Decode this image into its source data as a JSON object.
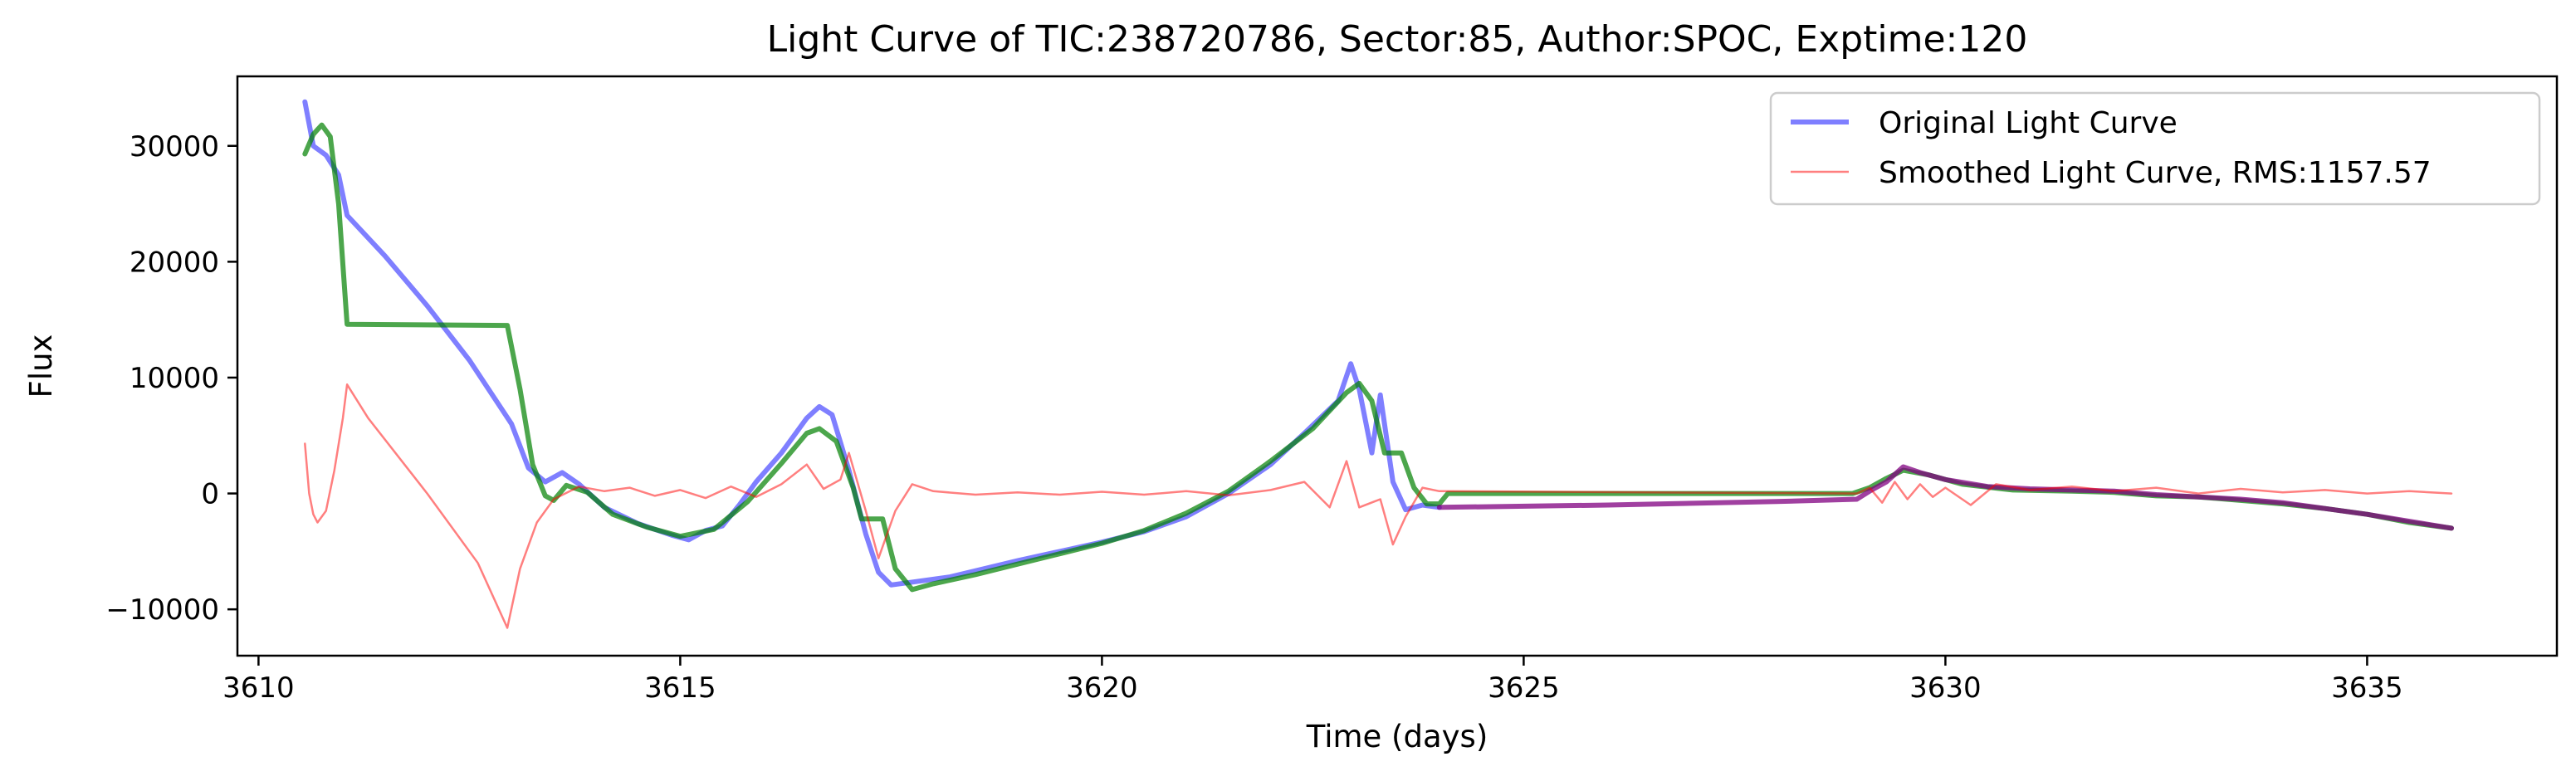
{
  "chart_data": {
    "type": "line",
    "title": "Light Curve of TIC:238720786, Sector:85, Author:SPOC, Exptime:120",
    "xlabel": "Time (days)",
    "ylabel": "Flux",
    "xlim": [
      3609.75,
      3637.25
    ],
    "ylim": [
      -14000,
      36000
    ],
    "xticks": [
      3610,
      3615,
      3620,
      3625,
      3630,
      3635
    ],
    "yticks": [
      -10000,
      0,
      10000,
      20000,
      30000
    ],
    "xtick_labels": [
      "3610",
      "3615",
      "3620",
      "3625",
      "3630",
      "3635"
    ],
    "ytick_labels": [
      "−10000",
      "0",
      "10000",
      "20000",
      "30000"
    ],
    "grid": false,
    "legend_position": "top-right",
    "series": [
      {
        "name": "Original Light Curve",
        "color": "#0000ff",
        "opacity": 0.5,
        "width": "thick",
        "points": [
          [
            3610.55,
            33800
          ],
          [
            3610.65,
            30000
          ],
          [
            3610.8,
            29200
          ],
          [
            3610.95,
            27500
          ],
          [
            3611.05,
            24000
          ],
          [
            3611.5,
            20500
          ],
          [
            3612.0,
            16200
          ],
          [
            3612.5,
            11500
          ],
          [
            3613.0,
            6000
          ],
          [
            3613.2,
            2200
          ],
          [
            3613.4,
            1000
          ],
          [
            3613.6,
            1800
          ],
          [
            3613.8,
            800
          ],
          [
            3614.1,
            -1200
          ],
          [
            3614.5,
            -2600
          ],
          [
            3614.9,
            -3600
          ],
          [
            3615.1,
            -4000
          ],
          [
            3615.3,
            -3200
          ],
          [
            3615.5,
            -2800
          ],
          [
            3615.7,
            -1000
          ],
          [
            3615.9,
            1000
          ],
          [
            3616.2,
            3500
          ],
          [
            3616.5,
            6500
          ],
          [
            3616.65,
            7500
          ],
          [
            3616.8,
            6800
          ],
          [
            3617.0,
            2000
          ],
          [
            3617.2,
            -3500
          ],
          [
            3617.35,
            -6800
          ],
          [
            3617.5,
            -7900
          ],
          [
            3617.8,
            -7600
          ],
          [
            3618.2,
            -7200
          ],
          [
            3618.6,
            -6500
          ],
          [
            3619.0,
            -5800
          ],
          [
            3619.5,
            -5000
          ],
          [
            3620.0,
            -4200
          ],
          [
            3620.5,
            -3300
          ],
          [
            3621.0,
            -2000
          ],
          [
            3621.5,
            0
          ],
          [
            3622.0,
            2500
          ],
          [
            3622.4,
            5200
          ],
          [
            3622.8,
            8000
          ],
          [
            3622.95,
            11200
          ],
          [
            3623.05,
            9000
          ],
          [
            3623.2,
            3500
          ],
          [
            3623.3,
            8500
          ],
          [
            3623.45,
            1000
          ],
          [
            3623.6,
            -1400
          ],
          [
            3623.8,
            -1000
          ],
          [
            3624.0,
            -1200
          ]
        ]
      },
      {
        "name": "Smoothed Light Curve, RMS:1157.57",
        "color": "#ff0000",
        "opacity": 0.5,
        "width": "thin",
        "points": [
          [
            3610.55,
            4300
          ],
          [
            3610.6,
            0
          ],
          [
            3610.65,
            -1800
          ],
          [
            3610.7,
            -2500
          ],
          [
            3610.8,
            -1500
          ],
          [
            3610.9,
            2000
          ],
          [
            3611.0,
            6500
          ],
          [
            3611.05,
            9400
          ],
          [
            3611.3,
            6500
          ],
          [
            3612.0,
            0
          ],
          [
            3612.6,
            -6000
          ],
          [
            3612.95,
            -11600
          ],
          [
            3613.1,
            -6500
          ],
          [
            3613.3,
            -2500
          ],
          [
            3613.5,
            -500
          ],
          [
            3613.8,
            600
          ],
          [
            3614.1,
            200
          ],
          [
            3614.4,
            500
          ],
          [
            3614.7,
            -200
          ],
          [
            3615.0,
            300
          ],
          [
            3615.3,
            -400
          ],
          [
            3615.6,
            600
          ],
          [
            3615.9,
            -300
          ],
          [
            3616.2,
            800
          ],
          [
            3616.5,
            2500
          ],
          [
            3616.7,
            400
          ],
          [
            3616.9,
            1200
          ],
          [
            3617.0,
            3500
          ],
          [
            3617.2,
            -1500
          ],
          [
            3617.35,
            -5600
          ],
          [
            3617.55,
            -1500
          ],
          [
            3617.75,
            800
          ],
          [
            3618.0,
            200
          ],
          [
            3618.5,
            -100
          ],
          [
            3619.0,
            100
          ],
          [
            3619.5,
            -100
          ],
          [
            3620.0,
            150
          ],
          [
            3620.5,
            -100
          ],
          [
            3621.0,
            200
          ],
          [
            3621.5,
            -150
          ],
          [
            3622.0,
            300
          ],
          [
            3622.4,
            1000
          ],
          [
            3622.7,
            -1200
          ],
          [
            3622.9,
            2800
          ],
          [
            3623.05,
            -1200
          ],
          [
            3623.3,
            -500
          ],
          [
            3623.45,
            -4400
          ],
          [
            3623.6,
            -2000
          ],
          [
            3623.8,
            500
          ],
          [
            3624.0,
            200
          ],
          [
            3628.95,
            0
          ],
          [
            3629.1,
            500
          ],
          [
            3629.25,
            -800
          ],
          [
            3629.4,
            1000
          ],
          [
            3629.55,
            -500
          ],
          [
            3629.7,
            800
          ],
          [
            3629.85,
            -300
          ],
          [
            3630.0,
            500
          ],
          [
            3630.3,
            -1000
          ],
          [
            3630.6,
            800
          ],
          [
            3631.0,
            300
          ],
          [
            3631.5,
            600
          ],
          [
            3632.0,
            200
          ],
          [
            3632.5,
            500
          ],
          [
            3633.0,
            0
          ],
          [
            3633.5,
            400
          ],
          [
            3634.0,
            100
          ],
          [
            3634.5,
            300
          ],
          [
            3635.0,
            0
          ],
          [
            3635.5,
            200
          ],
          [
            3636.0,
            0
          ]
        ]
      },
      {
        "name": "",
        "color": "#008000",
        "opacity": 0.7,
        "width": "thick",
        "points": [
          [
            3610.55,
            29300
          ],
          [
            3610.65,
            31000
          ],
          [
            3610.75,
            31800
          ],
          [
            3610.85,
            30800
          ],
          [
            3610.95,
            25000
          ],
          [
            3611.05,
            14600
          ],
          [
            3612.95,
            14500
          ],
          [
            3613.1,
            9000
          ],
          [
            3613.25,
            2500
          ],
          [
            3613.4,
            -200
          ],
          [
            3613.5,
            -600
          ],
          [
            3613.65,
            700
          ],
          [
            3613.9,
            100
          ],
          [
            3614.2,
            -1800
          ],
          [
            3614.6,
            -2900
          ],
          [
            3615.0,
            -3700
          ],
          [
            3615.4,
            -3100
          ],
          [
            3615.8,
            -700
          ],
          [
            3616.2,
            2600
          ],
          [
            3616.5,
            5200
          ],
          [
            3616.65,
            5600
          ],
          [
            3616.85,
            4500
          ],
          [
            3617.05,
            500
          ],
          [
            3617.15,
            -2200
          ],
          [
            3617.4,
            -2200
          ],
          [
            3617.55,
            -6500
          ],
          [
            3617.75,
            -8300
          ],
          [
            3618.0,
            -7800
          ],
          [
            3618.5,
            -7000
          ],
          [
            3619.0,
            -6100
          ],
          [
            3619.5,
            -5200
          ],
          [
            3620.0,
            -4300
          ],
          [
            3620.5,
            -3200
          ],
          [
            3621.0,
            -1700
          ],
          [
            3621.5,
            200
          ],
          [
            3622.0,
            2800
          ],
          [
            3622.5,
            5600
          ],
          [
            3622.9,
            8700
          ],
          [
            3623.05,
            9500
          ],
          [
            3623.2,
            8000
          ],
          [
            3623.35,
            3500
          ],
          [
            3623.55,
            3500
          ],
          [
            3623.7,
            500
          ],
          [
            3623.85,
            -900
          ],
          [
            3624.0,
            -900
          ],
          [
            3624.1,
            0
          ],
          [
            3628.9,
            0
          ],
          [
            3629.1,
            500
          ],
          [
            3629.3,
            1300
          ],
          [
            3629.5,
            2000
          ],
          [
            3629.8,
            1600
          ],
          [
            3630.2,
            800
          ],
          [
            3630.8,
            300
          ],
          [
            3631.5,
            200
          ],
          [
            3632.0,
            100
          ],
          [
            3632.5,
            -200
          ],
          [
            3633.0,
            -300
          ],
          [
            3633.5,
            -600
          ],
          [
            3634.0,
            -900
          ],
          [
            3634.5,
            -1300
          ],
          [
            3635.0,
            -1800
          ],
          [
            3635.5,
            -2500
          ],
          [
            3636.0,
            -3000
          ]
        ]
      },
      {
        "name": "",
        "color": "#800080",
        "opacity": 0.75,
        "width": "thick",
        "points": [
          [
            3624.0,
            -1200
          ],
          [
            3626.0,
            -1000
          ],
          [
            3628.0,
            -700
          ],
          [
            3628.95,
            -500
          ],
          [
            3629.1,
            200
          ],
          [
            3629.3,
            1000
          ],
          [
            3629.5,
            2300
          ],
          [
            3629.7,
            1800
          ],
          [
            3630.0,
            1200
          ],
          [
            3630.5,
            600
          ],
          [
            3631.0,
            400
          ],
          [
            3631.5,
            300
          ],
          [
            3632.0,
            200
          ],
          [
            3632.5,
            -100
          ],
          [
            3633.0,
            -300
          ],
          [
            3633.5,
            -500
          ],
          [
            3634.0,
            -800
          ],
          [
            3634.5,
            -1300
          ],
          [
            3635.0,
            -1800
          ],
          [
            3635.5,
            -2400
          ],
          [
            3636.0,
            -3000
          ]
        ]
      }
    ],
    "legend": [
      {
        "label": "Original Light Curve",
        "color": "#0000ff"
      },
      {
        "label": "Smoothed Light Curve, RMS:1157.57",
        "color": "#ff0000"
      }
    ]
  }
}
